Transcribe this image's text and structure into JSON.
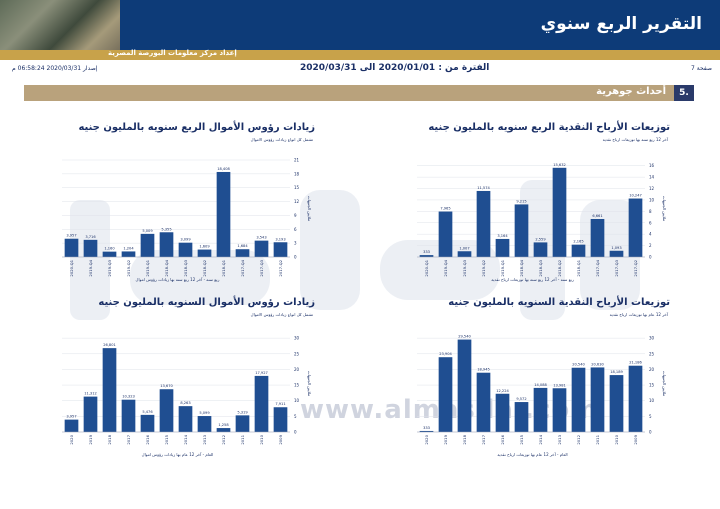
{
  "header": {
    "title": "التقرير الربع سنوي",
    "subtitle": "إعداد مركز معلومات البورصة المصرية"
  },
  "info": {
    "page": "صفحة 7",
    "period": "الفترة من : 2020/01/01 الى 2020/03/31",
    "issue_date": "إصدار 2020/03/31 06:58:24 م"
  },
  "section": {
    "number": "5.",
    "title": "أحداث جوهرية"
  },
  "watermark": {
    "url": "www.almasdar.com"
  },
  "colors": {
    "bar": "#1f4e91",
    "navy": "#0d3b78",
    "gold": "#c8a24a"
  },
  "chart_data": [
    {
      "type": "bar",
      "title": "توزيعات الأرباح النقدية الربع سنويه بالمليون جنيه",
      "subtitle": "آخر 12 ربع سنه بها توزيعات ارباح نقدية",
      "xlabel": "ربع سنه - آخر 12 ربع سنه بها توزيعات ارباح نقدية",
      "ylabel": "ملايين الجنيهات",
      "categories": [
        "2020-Q1",
        "2019-Q4",
        "2019-Q3",
        "2019-Q2",
        "2019-Q1",
        "2018-Q4",
        "2018-Q3",
        "2018-Q2",
        "2018-Q1",
        "2017-Q4",
        "2017-Q3",
        "2017-Q2"
      ],
      "values": [
        333,
        7965,
        1007,
        11574,
        3164,
        9215,
        2559,
        15632,
        2165,
        6661,
        1093,
        10247
      ],
      "value_labels": [
        "333",
        "7,965",
        "1,007",
        "11,574",
        "3,164",
        "9,215",
        "2,559",
        "15,632",
        "2,165",
        "6,661",
        "1,093",
        "10,247"
      ],
      "ylim": [
        0,
        17
      ],
      "yticks": [
        0,
        2,
        4,
        6,
        8,
        10,
        12,
        14,
        16
      ]
    },
    {
      "type": "bar",
      "title": "زيادات رؤوس الأموال الربع سنويه بالمليون جنيه",
      "subtitle": "تشمل كل انواع زيادات رؤوس الاموال",
      "xlabel": "ربع سنه - آخر 12 ربع سنه بها زيادات رؤوس اموال",
      "ylabel": "ملايين الجنيهات",
      "categories": [
        "2020-Q1",
        "2019-Q4",
        "2019-Q3",
        "2019-Q2",
        "2019-Q1",
        "2018-Q4",
        "2018-Q3",
        "2018-Q2",
        "2018-Q1",
        "2017-Q4",
        "2017-Q3",
        "2017-Q2"
      ],
      "values": [
        3957,
        3716,
        1160,
        1204,
        5009,
        5355,
        3099,
        1609,
        18408,
        1684,
        3543,
        3193
      ],
      "value_labels": [
        "3,957",
        "3,716",
        "1,160",
        "1,204",
        "5,009",
        "5,355",
        "3,099",
        "1,609",
        "18,408",
        "1,684",
        "3,543",
        "3,193"
      ],
      "ylim": [
        0,
        21
      ],
      "yticks": [
        0,
        3,
        6,
        9,
        12,
        15,
        18,
        21
      ]
    },
    {
      "type": "bar",
      "title": "توزيعات الأرباح النقدية السنويه بالمليون جنيه",
      "subtitle": "آخر 12 عام بها توزيعات ارباح نقدية",
      "xlabel": "العام - آخر 12 عام بها توزيعات ارباح نقدية",
      "ylabel": "ملايين الجنيهات",
      "categories": [
        "2020",
        "2019",
        "2018",
        "2017",
        "2016",
        "2015",
        "2014",
        "2013",
        "2012",
        "2011",
        "2010",
        "2009"
      ],
      "values": [
        333,
        23904,
        29540,
        18945,
        12224,
        9572,
        14088,
        13981,
        20540,
        20630,
        18189,
        21186
      ],
      "value_labels": [
        "333",
        "23,904",
        "29,540",
        "18,945",
        "12,224",
        "9,572",
        "14,088",
        "13,981",
        "20,540",
        "20,630",
        "18,189",
        "21,186"
      ],
      "ylim": [
        0,
        31
      ],
      "yticks": [
        0,
        5,
        10,
        15,
        20,
        25,
        30
      ]
    },
    {
      "type": "bar",
      "title": "زيادات رؤوس الأموال السنويه بالمليون جنيه",
      "subtitle": "تشمل كل انواع زيادات رؤوس الاموال",
      "xlabel": "العام - آخر 12 عام بها زيادات رؤوس اموال",
      "ylabel": "ملايين الجنيهات",
      "categories": [
        "2020",
        "2019",
        "2018",
        "2017",
        "2016",
        "2015",
        "2014",
        "2013",
        "2012",
        "2011",
        "2010",
        "2009"
      ],
      "values": [
        3957,
        11312,
        26801,
        10323,
        5476,
        13670,
        8263,
        5099,
        1258,
        5319,
        17927,
        7911
      ],
      "value_labels": [
        "3,957",
        "11,312",
        "26,801",
        "10,323",
        "5,476",
        "13,670",
        "8,263",
        "5,099",
        "1,258",
        "5,319",
        "17,927",
        "7,911"
      ],
      "ylim": [
        0,
        31
      ],
      "yticks": [
        0,
        5,
        10,
        15,
        20,
        25,
        30
      ]
    }
  ]
}
